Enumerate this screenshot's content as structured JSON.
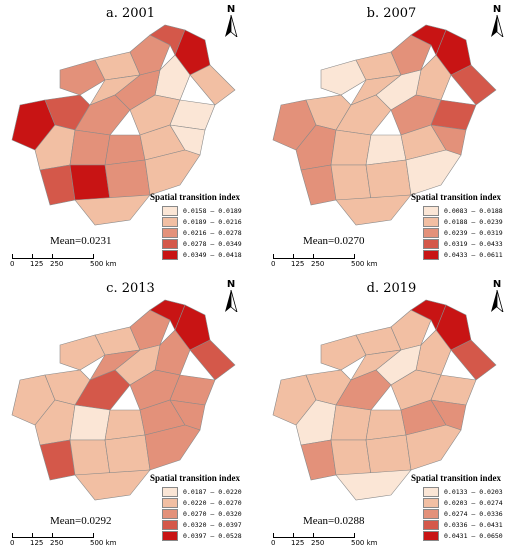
{
  "north_letter": "N",
  "legend_title": "Spatial transition index",
  "scale": {
    "labels": [
      "0",
      "125",
      "250",
      "500 km"
    ]
  },
  "panels": [
    {
      "title": "a. 2001",
      "mean": "Mean=0.0231",
      "legend": [
        "0.0158 — 0.0189",
        "0.0189 — 0.0216",
        "0.0216 — 0.0278",
        "0.0278 — 0.0349",
        "0.0349 — 0.0418"
      ]
    },
    {
      "title": "b. 2007",
      "mean": "Mean=0.0270",
      "legend": [
        "0.0083 — 0.0188",
        "0.0188 — 0.0239",
        "0.0239 — 0.0319",
        "0.0319 — 0.0433",
        "0.0433 — 0.0611"
      ]
    },
    {
      "title": "c. 2013",
      "mean": "Mean=0.0292",
      "legend": [
        "0.0187 — 0.0220",
        "0.0220 — 0.0270",
        "0.0270 — 0.0320",
        "0.0320 — 0.0397",
        "0.0397 — 0.0528"
      ]
    },
    {
      "title": "d. 2019",
      "mean": "Mean=0.0288",
      "legend": [
        "0.0133 — 0.0203",
        "0.0203 — 0.0274",
        "0.0274 — 0.0336",
        "0.0336 — 0.0431",
        "0.0431 — 0.0650"
      ]
    }
  ],
  "colors": [
    "#fbe6d6",
    "#f2bfa3",
    "#e3917a",
    "#d4584a",
    "#c81414"
  ],
  "region_classes": {
    "a": [
      2,
      1,
      2,
      3,
      4,
      1,
      0,
      2,
      1,
      4,
      3,
      2,
      1,
      0,
      1,
      2,
      2,
      1,
      0,
      3,
      4,
      2,
      1,
      1
    ],
    "b": [
      0,
      1,
      2,
      4,
      4,
      3,
      1,
      0,
      1,
      2,
      1,
      1,
      2,
      3,
      2,
      1,
      0,
      1,
      2,
      2,
      1,
      1,
      0,
      1
    ],
    "c": [
      1,
      1,
      2,
      4,
      4,
      3,
      2,
      1,
      2,
      1,
      1,
      3,
      2,
      2,
      1,
      0,
      1,
      2,
      2,
      3,
      1,
      1,
      2,
      1
    ],
    "d": [
      1,
      1,
      1,
      4,
      4,
      3,
      1,
      0,
      1,
      1,
      1,
      2,
      1,
      1,
      0,
      1,
      1,
      2,
      2,
      2,
      1,
      1,
      1,
      0
    ]
  }
}
